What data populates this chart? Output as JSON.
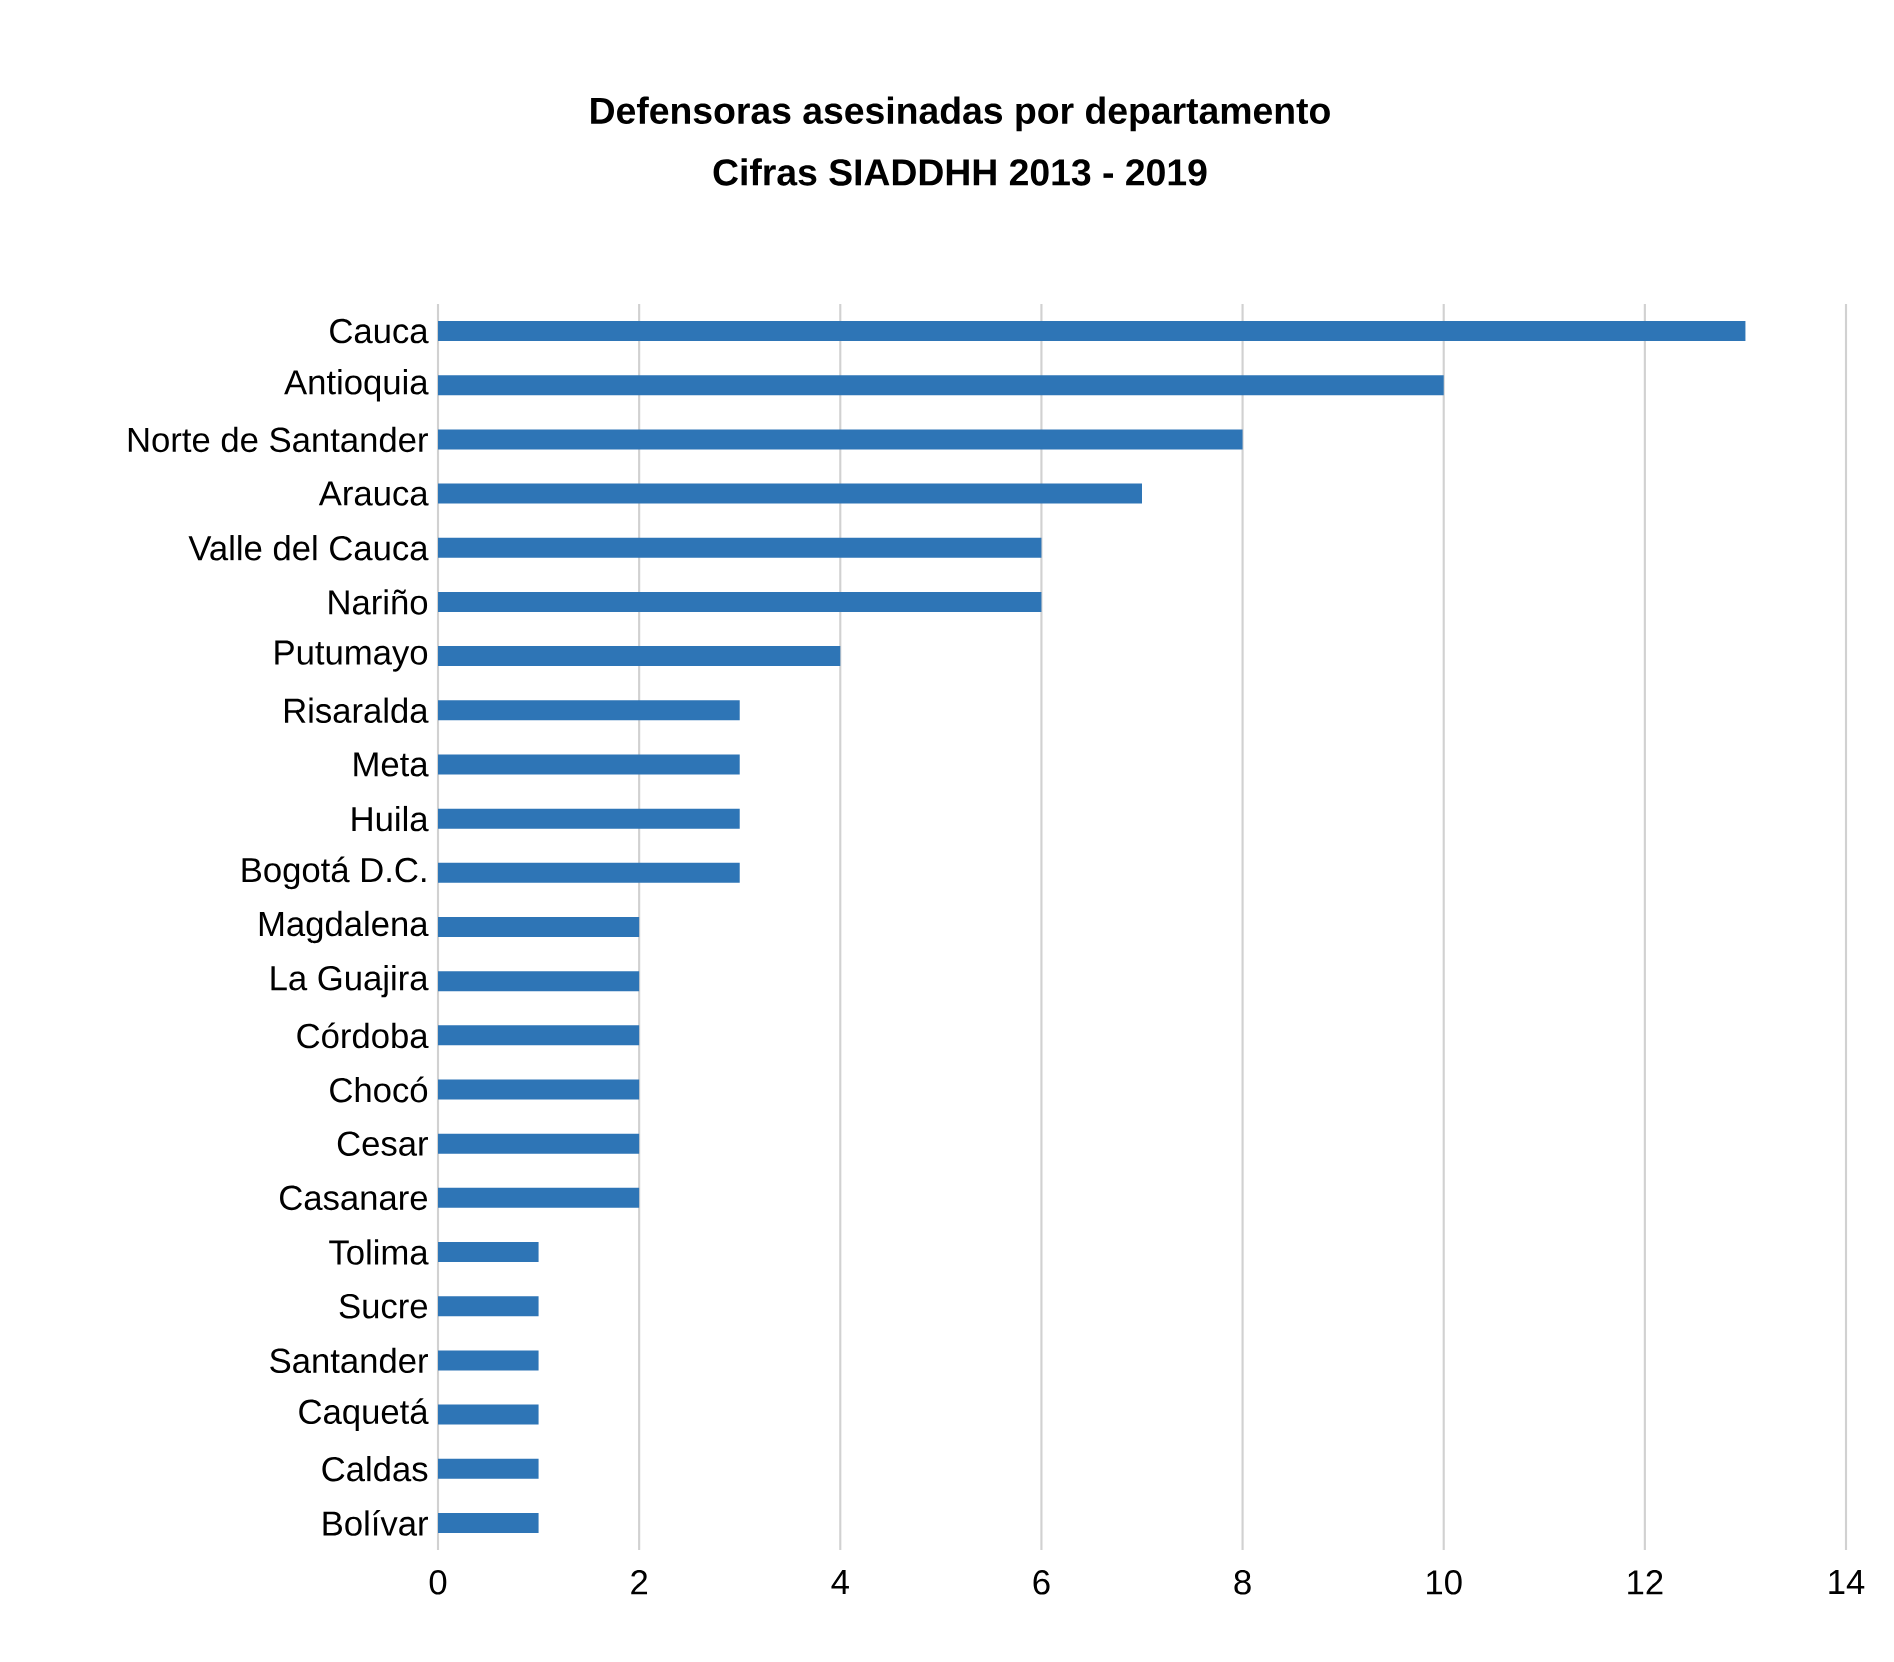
{
  "chart_data": {
    "type": "bar",
    "orientation": "horizontal",
    "title": "Defensoras asesinadas por departamento",
    "subtitle": "Cifras SIADDHH  2013 - 2019",
    "categories": [
      "Cauca",
      "Antioquia",
      "Norte de Santander",
      "Arauca",
      "Valle del Cauca",
      "Nariño",
      "Putumayo",
      "Risaralda",
      "Meta",
      "Huila",
      "Bogotá D.C.",
      "Magdalena",
      "La Guajira",
      "Córdoba",
      "Chocó",
      "Cesar",
      "Casanare",
      "Tolima",
      "Sucre",
      "Santander",
      "Caquetá",
      "Caldas",
      "Bolívar"
    ],
    "values": [
      13,
      10,
      8,
      7,
      6,
      6,
      4,
      3,
      3,
      3,
      3,
      2,
      2,
      2,
      2,
      2,
      2,
      1,
      1,
      1,
      1,
      1,
      1
    ],
    "color": "#2e75b6",
    "xlim": [
      0,
      14
    ],
    "xticks": [
      0,
      2,
      4,
      6,
      8,
      10,
      12,
      14
    ],
    "grid": "x"
  }
}
